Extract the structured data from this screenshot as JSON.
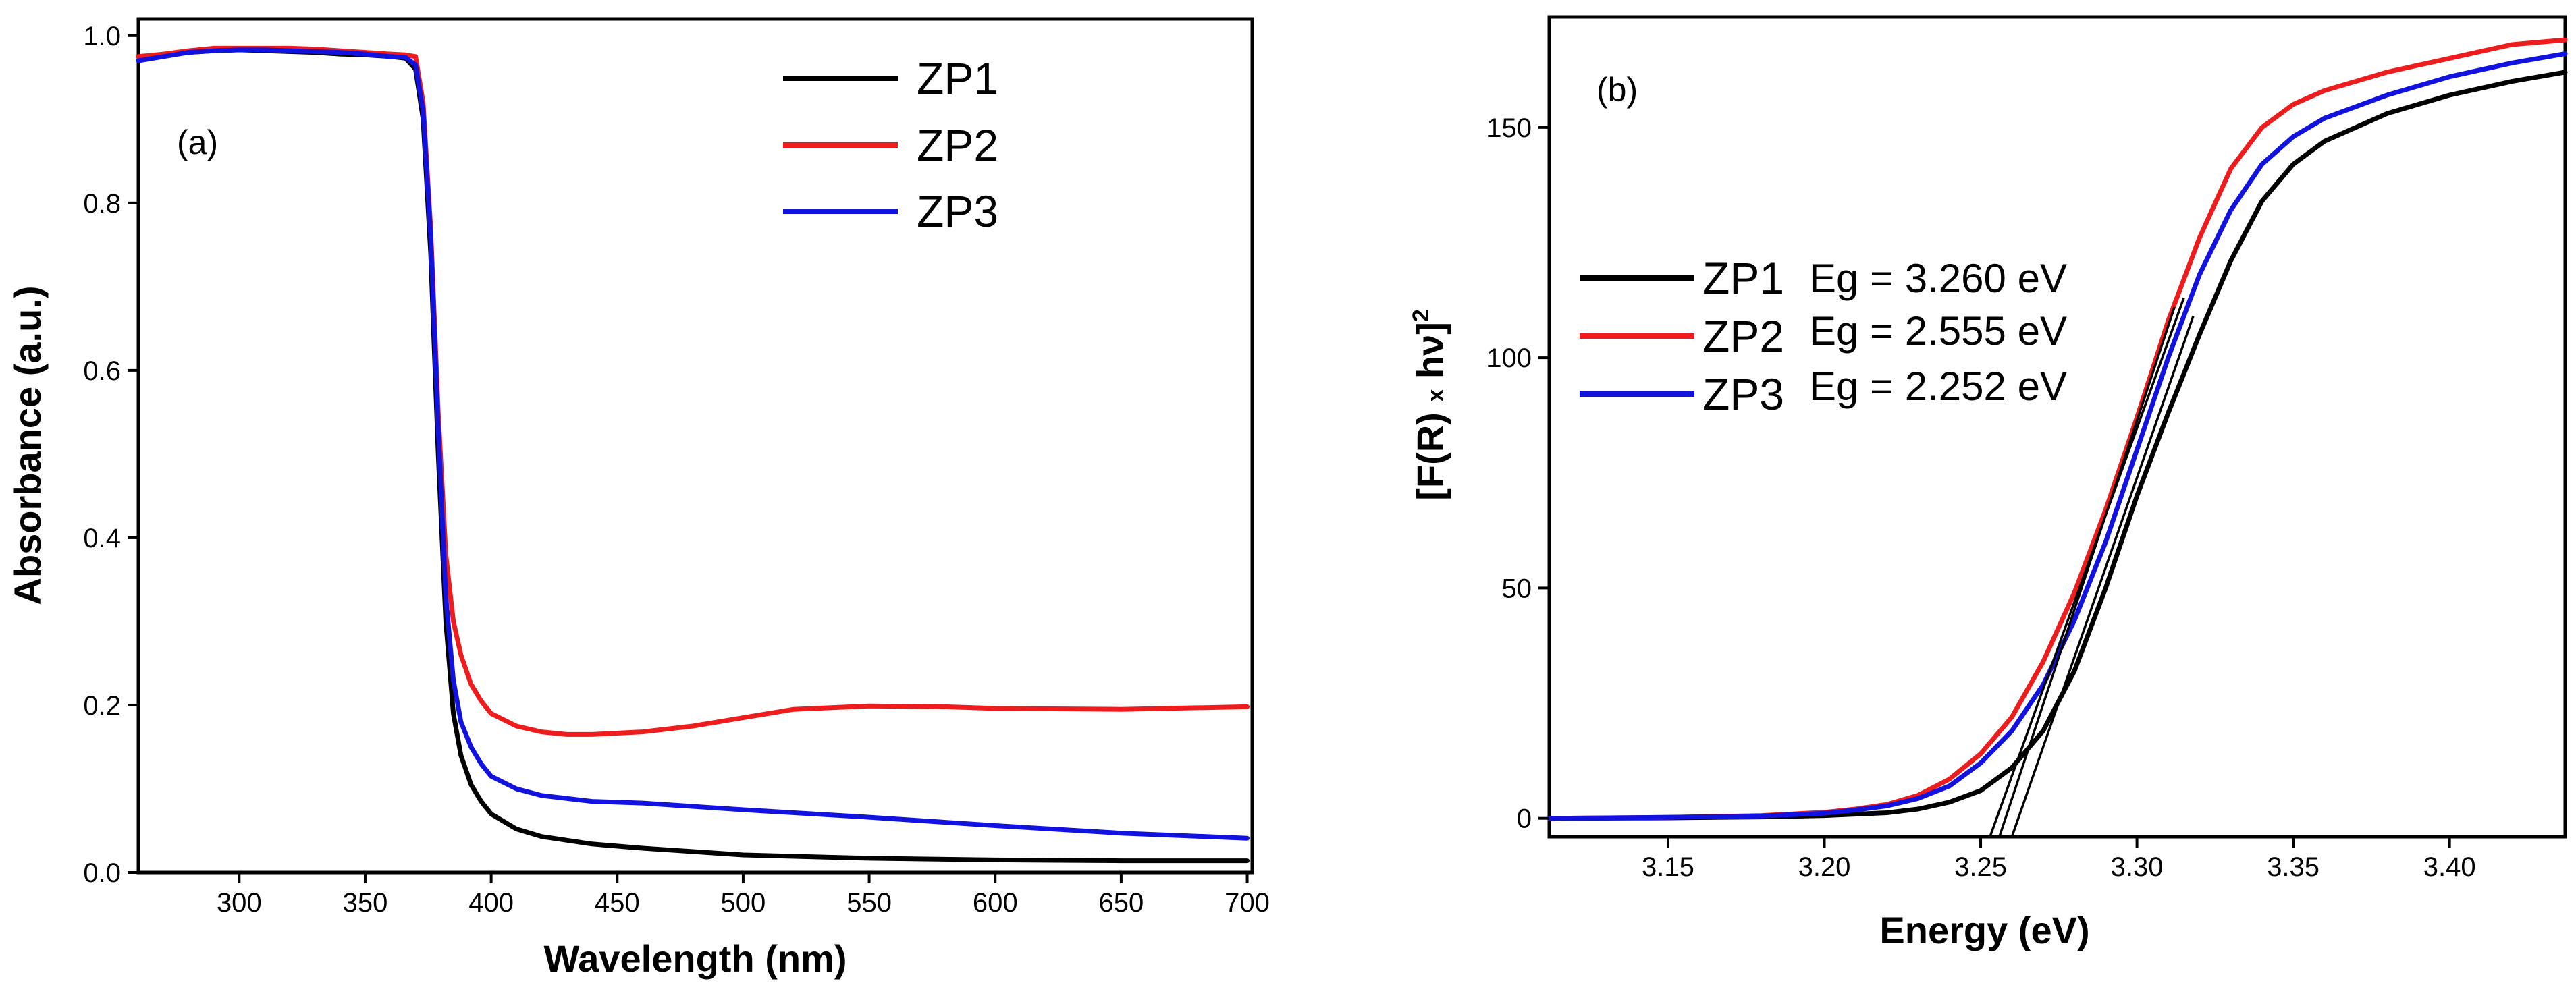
{
  "colors": {
    "ZP1": "#000000",
    "ZP2": "#ee1c1c",
    "ZP3": "#1212e0"
  },
  "chart_data": [
    {
      "type": "line",
      "panel_label": "(a)",
      "xlabel": "Wavelength (nm)",
      "ylabel": "Absorbance (a.u.)",
      "xlim": [
        260,
        702
      ],
      "ylim": [
        0,
        1.02
      ],
      "xticks": [
        300,
        350,
        400,
        450,
        500,
        550,
        600,
        650,
        700
      ],
      "yticks": [
        0.0,
        0.2,
        0.4,
        0.6,
        0.8,
        1.0
      ],
      "ytick_labels": [
        "0.0",
        "0.2",
        "0.4",
        "0.6",
        "0.8",
        "1.0"
      ],
      "legend": [
        "ZP1",
        "ZP2",
        "ZP3"
      ],
      "series": [
        {
          "name": "ZP1",
          "color": "#000000",
          "x": [
            260,
            270,
            280,
            290,
            300,
            310,
            320,
            330,
            340,
            350,
            360,
            366,
            370,
            373,
            376,
            379,
            382,
            385,
            388,
            392,
            396,
            400,
            410,
            420,
            440,
            460,
            480,
            500,
            550,
            600,
            650,
            700
          ],
          "y": [
            0.975,
            0.977,
            0.98,
            0.982,
            0.983,
            0.982,
            0.981,
            0.98,
            0.978,
            0.977,
            0.975,
            0.973,
            0.96,
            0.9,
            0.74,
            0.5,
            0.3,
            0.19,
            0.14,
            0.105,
            0.085,
            0.07,
            0.052,
            0.043,
            0.034,
            0.029,
            0.025,
            0.021,
            0.017,
            0.015,
            0.014,
            0.014
          ]
        },
        {
          "name": "ZP2",
          "color": "#ee1c1c",
          "x": [
            260,
            270,
            280,
            290,
            300,
            310,
            320,
            330,
            340,
            350,
            360,
            366,
            370,
            373,
            376,
            379,
            382,
            385,
            388,
            392,
            396,
            400,
            410,
            420,
            430,
            440,
            460,
            480,
            500,
            520,
            550,
            580,
            600,
            650,
            700
          ],
          "y": [
            0.975,
            0.978,
            0.982,
            0.985,
            0.985,
            0.985,
            0.985,
            0.984,
            0.982,
            0.98,
            0.978,
            0.977,
            0.975,
            0.92,
            0.77,
            0.55,
            0.38,
            0.3,
            0.26,
            0.225,
            0.205,
            0.19,
            0.175,
            0.168,
            0.165,
            0.165,
            0.168,
            0.175,
            0.185,
            0.195,
            0.199,
            0.198,
            0.196,
            0.195,
            0.198
          ]
        },
        {
          "name": "ZP3",
          "color": "#1212e0",
          "x": [
            260,
            270,
            280,
            290,
            300,
            310,
            320,
            330,
            340,
            350,
            360,
            366,
            370,
            373,
            376,
            379,
            382,
            385,
            388,
            392,
            396,
            400,
            410,
            420,
            440,
            460,
            500,
            550,
            600,
            650,
            700
          ],
          "y": [
            0.97,
            0.975,
            0.98,
            0.982,
            0.983,
            0.983,
            0.982,
            0.981,
            0.98,
            0.978,
            0.975,
            0.974,
            0.965,
            0.91,
            0.76,
            0.53,
            0.33,
            0.23,
            0.18,
            0.15,
            0.13,
            0.115,
            0.1,
            0.092,
            0.085,
            0.083,
            0.075,
            0.066,
            0.056,
            0.047,
            0.041
          ]
        }
      ]
    },
    {
      "type": "line",
      "panel_label": "(b)",
      "xlabel": "Energy (eV)",
      "ylabel": "[F(R) x hν]²",
      "ylabel_main": "[F(R) ",
      "ylabel_x": "x",
      "ylabel_hv": " hν]",
      "ylabel_sup": "2",
      "xlim": [
        3.112,
        3.437
      ],
      "ylim": [
        -4,
        174
      ],
      "xticks": [
        3.15,
        3.2,
        3.25,
        3.3,
        3.35,
        3.4
      ],
      "xtick_labels": [
        "3.15",
        "3.20",
        "3.25",
        "3.30",
        "3.35",
        "3.40"
      ],
      "yticks": [
        0,
        50,
        100,
        150
      ],
      "legend": [
        "ZP1",
        "ZP2",
        "ZP3"
      ],
      "legend_bandgaps": [
        "Eg = 3.260 eV",
        "Eg = 2.555 eV",
        "Eg = 2.252 eV"
      ],
      "series": [
        {
          "name": "ZP1",
          "color": "#000000",
          "x": [
            3.112,
            3.15,
            3.18,
            3.2,
            3.22,
            3.23,
            3.24,
            3.25,
            3.26,
            3.27,
            3.28,
            3.29,
            3.3,
            3.31,
            3.32,
            3.33,
            3.34,
            3.35,
            3.36,
            3.38,
            3.4,
            3.42,
            3.437
          ],
          "y": [
            0,
            0.1,
            0.3,
            0.6,
            1.2,
            2,
            3.5,
            6,
            11,
            19,
            32,
            50,
            70,
            88,
            105,
            121,
            134,
            142,
            147,
            153,
            157,
            160,
            162
          ]
        },
        {
          "name": "ZP2",
          "color": "#ee1c1c",
          "x": [
            3.112,
            3.15,
            3.18,
            3.2,
            3.21,
            3.22,
            3.23,
            3.24,
            3.25,
            3.26,
            3.27,
            3.28,
            3.29,
            3.3,
            3.31,
            3.32,
            3.33,
            3.34,
            3.35,
            3.36,
            3.38,
            3.4,
            3.42,
            3.437
          ],
          "y": [
            0,
            0.2,
            0.6,
            1.3,
            2,
            3,
            5,
            8.5,
            14,
            22,
            34,
            49,
            67,
            87,
            108,
            126,
            141,
            150,
            155,
            158,
            162,
            165,
            168,
            169
          ]
        },
        {
          "name": "ZP3",
          "color": "#1212e0",
          "x": [
            3.112,
            3.15,
            3.18,
            3.2,
            3.21,
            3.22,
            3.23,
            3.24,
            3.25,
            3.26,
            3.27,
            3.28,
            3.29,
            3.3,
            3.31,
            3.32,
            3.33,
            3.34,
            3.35,
            3.36,
            3.38,
            3.4,
            3.42,
            3.437
          ],
          "y": [
            0,
            0.2,
            0.5,
            1.1,
            1.8,
            2.7,
            4.3,
            7,
            12,
            19,
            29,
            43,
            60,
            80,
            100,
            118,
            132,
            142,
            148,
            152,
            157,
            161,
            164,
            166
          ]
        }
      ],
      "tangents": [
        {
          "x": [
            3.253,
            3.315
          ],
          "y": [
            -4,
            113
          ]
        },
        {
          "x": [
            3.256,
            3.312
          ],
          "y": [
            -4,
            111
          ]
        },
        {
          "x": [
            3.26,
            3.318
          ],
          "y": [
            -4,
            109
          ]
        }
      ]
    }
  ]
}
